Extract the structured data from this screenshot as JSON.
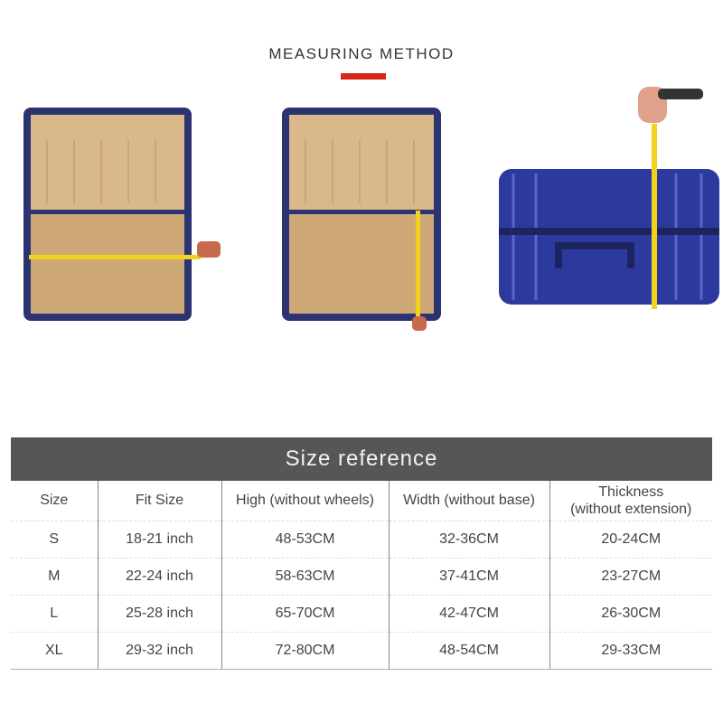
{
  "header": {
    "title": "MEASURING METHOD",
    "accent_color": "#d9261c"
  },
  "images": [
    {
      "icon": "open-suitcase-width-measure-icon"
    },
    {
      "icon": "open-suitcase-height-measure-icon"
    },
    {
      "icon": "closed-suitcase-thickness-measure-icon"
    }
  ],
  "size_table": {
    "title": "Size reference",
    "columns": [
      "Size",
      "Fit Size",
      "High (without wheels)",
      "Width (without base)",
      "Thickness\n(without extension)"
    ],
    "rows": [
      [
        "S",
        "18-21 inch",
        "48-53CM",
        "32-36CM",
        "20-24CM"
      ],
      [
        "M",
        "22-24 inch",
        "58-63CM",
        "37-41CM",
        "23-27CM"
      ],
      [
        "L",
        "25-28 inch",
        "65-70CM",
        "42-47CM",
        "26-30CM"
      ],
      [
        "XL",
        "29-32 inch",
        "72-80CM",
        "48-54CM",
        "29-33CM"
      ]
    ]
  }
}
